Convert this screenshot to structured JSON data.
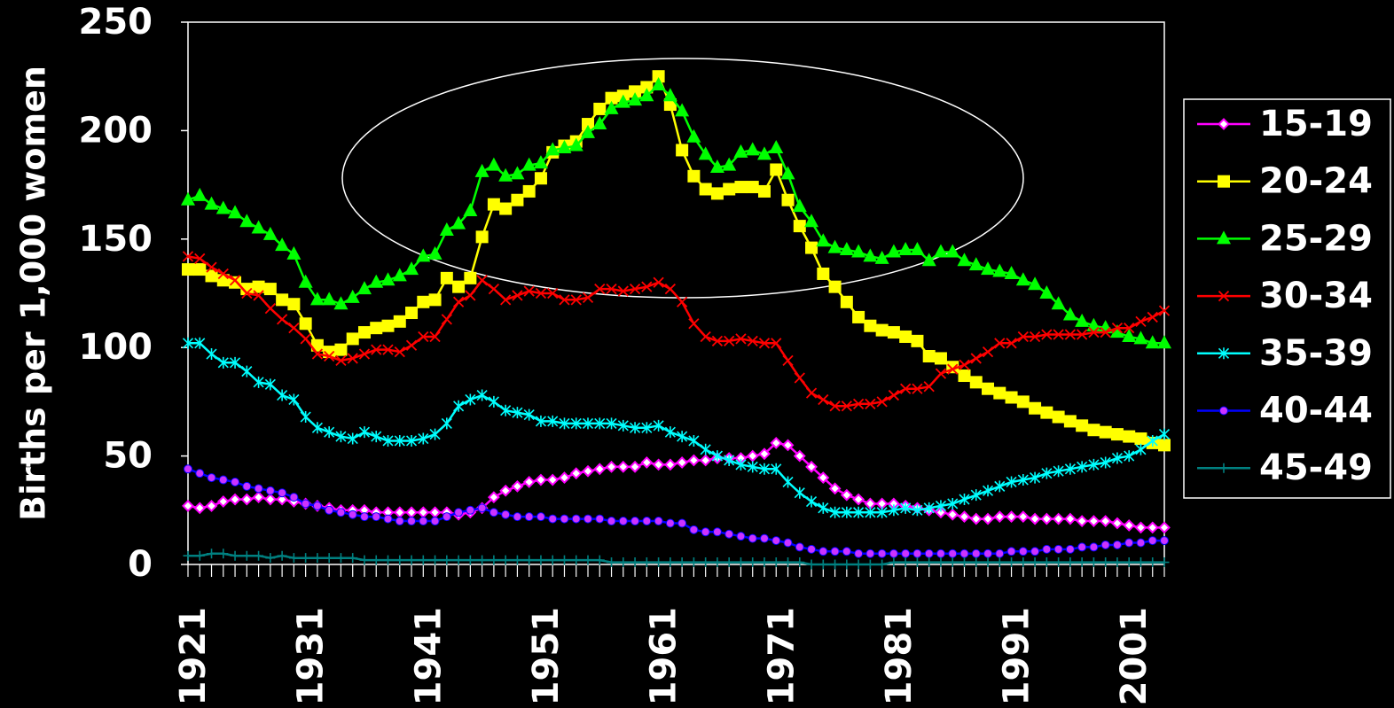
{
  "chart_data": {
    "type": "line",
    "y_label": "Births per 1,000 women",
    "x": [
      1921,
      1922,
      1923,
      1924,
      1925,
      1926,
      1927,
      1928,
      1929,
      1930,
      1931,
      1932,
      1933,
      1934,
      1935,
      1936,
      1937,
      1938,
      1939,
      1940,
      1941,
      1942,
      1943,
      1944,
      1945,
      1946,
      1947,
      1948,
      1949,
      1950,
      1951,
      1952,
      1953,
      1954,
      1955,
      1956,
      1957,
      1958,
      1959,
      1960,
      1961,
      1962,
      1963,
      1964,
      1965,
      1966,
      1967,
      1968,
      1969,
      1970,
      1971,
      1972,
      1973,
      1974,
      1975,
      1976,
      1977,
      1978,
      1979,
      1980,
      1981,
      1982,
      1983,
      1984,
      1985,
      1986,
      1987,
      1988,
      1989,
      1990,
      1991,
      1992,
      1993,
      1994,
      1995,
      1996,
      1997,
      1998,
      1999,
      2000,
      2001,
      2002,
      2003,
      2004
    ],
    "xlim": [
      1921,
      2004
    ],
    "xticks": [
      1921,
      1931,
      1941,
      1951,
      1961,
      1971,
      1981,
      1991,
      2001
    ],
    "ylim": [
      0,
      250
    ],
    "yticks": [
      0,
      50,
      100,
      150,
      200,
      250
    ],
    "legend": "right",
    "series": [
      {
        "name": "15-19",
        "color": "#ff00ff",
        "values": [
          27,
          26,
          27,
          29,
          30,
          30,
          31,
          30,
          30,
          29,
          28,
          27,
          26,
          25,
          25,
          25,
          24,
          24,
          24,
          24,
          24,
          24,
          24,
          23,
          24,
          26,
          31,
          34,
          36,
          38,
          39,
          39,
          40,
          42,
          43,
          44,
          45,
          45,
          45,
          47,
          46,
          46,
          47,
          48,
          48,
          49,
          49,
          49,
          50,
          51,
          56,
          55,
          50,
          45,
          40,
          35,
          32,
          30,
          28,
          28,
          28,
          27,
          26,
          25,
          24,
          23,
          22,
          21,
          21,
          22,
          22,
          22,
          21,
          21,
          21,
          21,
          20,
          20,
          20,
          19,
          18,
          17,
          17,
          17
        ]
      },
      {
        "name": "20-24",
        "color": "#ffff00",
        "values": [
          136,
          136,
          133,
          131,
          130,
          127,
          128,
          127,
          122,
          120,
          111,
          101,
          98,
          99,
          104,
          107,
          109,
          110,
          112,
          116,
          121,
          122,
          132,
          128,
          132,
          151,
          166,
          164,
          168,
          172,
          178,
          190,
          193,
          195,
          203,
          210,
          215,
          216,
          218,
          220,
          225,
          212,
          191,
          179,
          173,
          171,
          173,
          174,
          174,
          172,
          182,
          168,
          156,
          146,
          134,
          128,
          121,
          114,
          110,
          108,
          107,
          105,
          103,
          96,
          95,
          91,
          87,
          84,
          81,
          79,
          77,
          75,
          72,
          70,
          68,
          66,
          64,
          62,
          61,
          60,
          59,
          58,
          56,
          55
        ]
      },
      {
        "name": "25-29",
        "color": "#00ff00",
        "values": [
          168,
          170,
          166,
          164,
          162,
          158,
          155,
          152,
          147,
          143,
          130,
          122,
          122,
          120,
          123,
          127,
          130,
          131,
          133,
          136,
          142,
          143,
          154,
          157,
          163,
          181,
          184,
          179,
          180,
          184,
          185,
          191,
          192,
          193,
          199,
          203,
          210,
          213,
          214,
          216,
          221,
          216,
          209,
          197,
          189,
          183,
          184,
          190,
          191,
          189,
          192,
          180,
          165,
          158,
          149,
          146,
          145,
          144,
          142,
          141,
          144,
          145,
          145,
          140,
          144,
          144,
          140,
          138,
          136,
          135,
          134,
          131,
          129,
          125,
          120,
          115,
          112,
          110,
          109,
          107,
          105,
          104,
          102,
          102
        ]
      },
      {
        "name": "30-34",
        "color": "#ff0000",
        "values": [
          142,
          141,
          137,
          134,
          131,
          125,
          124,
          118,
          113,
          109,
          104,
          97,
          96,
          94,
          95,
          97,
          99,
          99,
          98,
          101,
          105,
          105,
          113,
          121,
          124,
          131,
          127,
          122,
          124,
          126,
          125,
          125,
          122,
          122,
          123,
          127,
          127,
          126,
          127,
          128,
          130,
          127,
          121,
          111,
          105,
          103,
          103,
          104,
          103,
          102,
          102,
          94,
          86,
          79,
          76,
          73,
          73,
          74,
          74,
          75,
          78,
          81,
          81,
          82,
          88,
          90,
          92,
          95,
          98,
          102,
          102,
          105,
          105,
          106,
          106,
          106,
          106,
          107,
          107,
          109,
          109,
          112,
          114,
          117
        ]
      },
      {
        "name": "35-39",
        "color": "#00ffff",
        "values": [
          102,
          102,
          97,
          93,
          93,
          89,
          84,
          83,
          78,
          76,
          68,
          63,
          61,
          59,
          58,
          61,
          59,
          57,
          57,
          57,
          58,
          60,
          65,
          73,
          76,
          78,
          75,
          71,
          70,
          69,
          66,
          66,
          65,
          65,
          65,
          65,
          65,
          64,
          63,
          63,
          64,
          61,
          59,
          57,
          53,
          50,
          48,
          46,
          45,
          44,
          44,
          38,
          33,
          29,
          26,
          24,
          24,
          24,
          24,
          24,
          25,
          26,
          25,
          26,
          27,
          28,
          30,
          32,
          34,
          36,
          38,
          39,
          40,
          42,
          43,
          44,
          45,
          46,
          47,
          49,
          50,
          53,
          57,
          60
        ]
      },
      {
        "name": "40-44",
        "color": "#0000ff",
        "values": [
          44,
          42,
          40,
          39,
          38,
          36,
          35,
          34,
          33,
          31,
          28,
          27,
          25,
          24,
          23,
          22,
          22,
          21,
          20,
          20,
          20,
          20,
          22,
          24,
          25,
          26,
          24,
          23,
          22,
          22,
          22,
          21,
          21,
          21,
          21,
          21,
          20,
          20,
          20,
          20,
          20,
          19,
          19,
          16,
          15,
          15,
          14,
          13,
          12,
          12,
          11,
          10,
          8,
          7,
          6,
          6,
          6,
          5,
          5,
          5,
          5,
          5,
          5,
          5,
          5,
          5,
          5,
          5,
          5,
          5,
          6,
          6,
          6,
          7,
          7,
          7,
          8,
          8,
          9,
          9,
          10,
          10,
          11,
          11
        ]
      },
      {
        "name": "45-49",
        "color": "#008080",
        "values": [
          4,
          4,
          5,
          5,
          4,
          4,
          4,
          3,
          4,
          3,
          3,
          3,
          3,
          3,
          3,
          2,
          2,
          2,
          2,
          2,
          2,
          2,
          2,
          2,
          2,
          2,
          2,
          2,
          2,
          2,
          2,
          2,
          2,
          2,
          2,
          2,
          1,
          1,
          1,
          1,
          1,
          1,
          1,
          1,
          1,
          1,
          1,
          1,
          1,
          1,
          1,
          1,
          1,
          0,
          0,
          0,
          0,
          0,
          0,
          0,
          1,
          1,
          1,
          1,
          1,
          1,
          1,
          1,
          1,
          1,
          1,
          1,
          1,
          1,
          1,
          1,
          1,
          1,
          1,
          1,
          1,
          1,
          1,
          1
        ]
      }
    ]
  }
}
